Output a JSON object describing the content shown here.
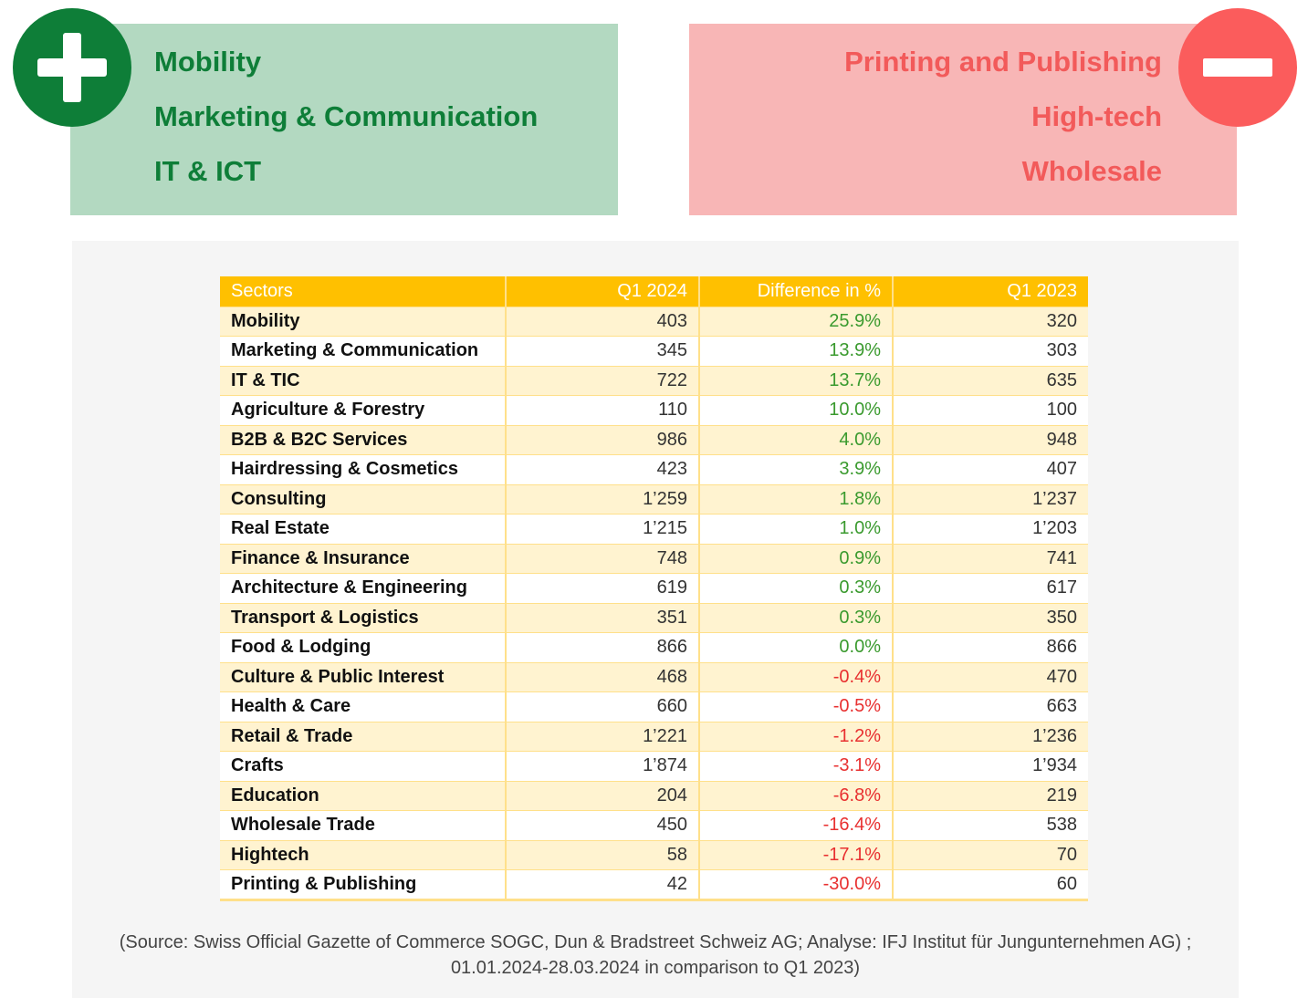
{
  "growth": {
    "items": [
      "Mobility",
      "Marketing & Communication",
      "IT & ICT"
    ],
    "color": "#0e7e38"
  },
  "decline": {
    "items": [
      "Printing and Publishing",
      "High-tech",
      "Wholesale"
    ],
    "color": "#f25a5a"
  },
  "table": {
    "headers": [
      "Sectors",
      "Q1 2024",
      "Difference in %",
      "Q1 2023"
    ],
    "rows": [
      [
        "Mobility",
        "403",
        "25.9%",
        "320"
      ],
      [
        "Marketing & Communication",
        "345",
        "13.9%",
        "303"
      ],
      [
        "IT & TIC",
        "722",
        "13.7%",
        "635"
      ],
      [
        "Agriculture & Forestry",
        "110",
        "10.0%",
        "100"
      ],
      [
        "B2B & B2C Services",
        "986",
        "4.0%",
        "948"
      ],
      [
        "Hairdressing & Cosmetics",
        "423",
        "3.9%",
        "407"
      ],
      [
        "Consulting",
        "1’259",
        "1.8%",
        "1’237"
      ],
      [
        "Real Estate",
        "1’215",
        "1.0%",
        "1’203"
      ],
      [
        "Finance & Insurance",
        "748",
        "0.9%",
        "741"
      ],
      [
        "Architecture & Engineering",
        "619",
        "0.3%",
        "617"
      ],
      [
        "Transport & Logistics",
        "351",
        "0.3%",
        "350"
      ],
      [
        "Food & Lodging",
        "866",
        "0.0%",
        "866"
      ],
      [
        "Culture & Public Interest",
        "468",
        "-0.4%",
        "470"
      ],
      [
        "Health & Care",
        "660",
        "-0.5%",
        "663"
      ],
      [
        "Retail & Trade",
        "1’221",
        "-1.2%",
        "1’236"
      ],
      [
        "Crafts",
        "1’874",
        "-3.1%",
        "1’934"
      ],
      [
        "Education",
        "204",
        "-6.8%",
        "219"
      ],
      [
        "Wholesale Trade",
        "450",
        "-16.4%",
        "538"
      ],
      [
        "Hightech",
        "58",
        "-17.1%",
        "70"
      ],
      [
        "Printing & Publishing",
        "42",
        "-30.0%",
        "60"
      ]
    ]
  },
  "source": {
    "line1": "(Source: Swiss Official Gazette of Commerce SOGC, Dun & Bradstreet Schweiz AG; Analyse: IFJ Institut für Jungunternehmen AG) ;",
    "line2": "01.01.2024-28.03.2024 in comparison to Q1 2023)"
  },
  "icons": {
    "plus": "plus-icon",
    "minus": "minus-icon"
  }
}
